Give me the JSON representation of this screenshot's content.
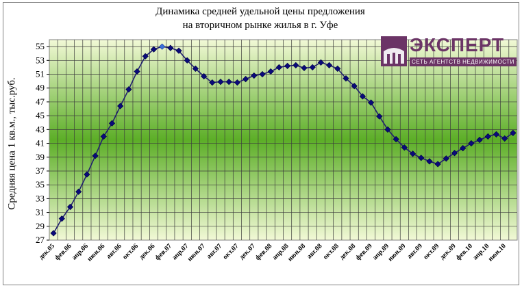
{
  "chart_data": {
    "type": "line",
    "title_line1": "Динамика средней удельной цены предложения",
    "title_line2": "на вторичном рынке жилья в г. Уфе",
    "xlabel": "",
    "ylabel": "Средняя цена 1 кв.м., тыс.руб.",
    "ylim": [
      27,
      56
    ],
    "yticks": [
      27,
      29,
      31,
      33,
      35,
      37,
      39,
      41,
      43,
      45,
      47,
      49,
      51,
      53,
      55
    ],
    "grid": true,
    "x": [
      "дек.05",
      "янв.06",
      "фев.06",
      "мар.06",
      "апр.06",
      "май.06",
      "июн.06",
      "июл.06",
      "авг.06",
      "сен.06",
      "окт.06",
      "ноя.06",
      "дек.06",
      "янв.07",
      "фев.07",
      "мар.07",
      "апр.07",
      "май.07",
      "июн.07",
      "июл.07",
      "авг.07",
      "сен.07",
      "окт.07",
      "ноя.07",
      "дек.07",
      "янв.08",
      "фев.08",
      "мар.08",
      "апр.08",
      "май.08",
      "июн.08",
      "июл.08",
      "авг.08",
      "сен.08",
      "окт.08",
      "ноя.08",
      "дек.08",
      "янв.09",
      "фев.09",
      "мар.09",
      "апр.09",
      "май.09",
      "июн.09",
      "июл.09",
      "авг.09",
      "сен.09",
      "окт.09",
      "ноя.09",
      "дек.09",
      "янв.10",
      "фев.10",
      "мар.10",
      "апр.10",
      "май.10",
      "июн.10",
      "июл.10"
    ],
    "xtick_labels": [
      "дек.05",
      "фев.06",
      "апр.06",
      "июн.06",
      "авг.06",
      "окт.06",
      "дек.06",
      "фев.07",
      "апр.07",
      "июн.07",
      "авг.07",
      "окт.07",
      "дек.07",
      "фев.08",
      "апр.08",
      "июн.08",
      "авг.08",
      "окт.08",
      "дек.08",
      "фев.09",
      "апр.09",
      "июн.09",
      "авг.09",
      "окт.09",
      "дек.09",
      "фев.10",
      "апр.10",
      "июн.10"
    ],
    "series": [
      {
        "values": [
          28.0,
          30.1,
          31.8,
          34.0,
          36.5,
          39.2,
          42.0,
          43.9,
          46.4,
          48.8,
          51.4,
          53.6,
          54.6,
          55.0,
          54.8,
          54.4,
          53.0,
          51.8,
          50.7,
          49.8,
          49.9,
          49.9,
          49.8,
          50.3,
          50.8,
          51.0,
          51.4,
          52.0,
          52.2,
          52.3,
          51.9,
          52.0,
          52.7,
          52.3,
          51.8,
          50.4,
          49.3,
          47.8,
          46.9,
          44.9,
          43.0,
          41.6,
          40.4,
          39.5,
          38.9,
          38.4,
          38.0,
          38.8,
          39.6,
          40.3,
          41.0,
          41.5,
          42.0,
          42.3,
          41.7,
          42.5
        ]
      }
    ],
    "highlight_index": 13,
    "colors": {
      "line": "#1f1f6e",
      "marker": "#0a0a7a",
      "highlight": "#3b6fd8",
      "plot_top": "#eef7c8",
      "plot_mid": "#62b32a"
    }
  },
  "logo": {
    "word": "ЭКСПЕРТ",
    "subtitle": "СЕТЬ АГЕНТСТВ НЕДВИЖИМОСТИ",
    "color": "#6b3466"
  }
}
